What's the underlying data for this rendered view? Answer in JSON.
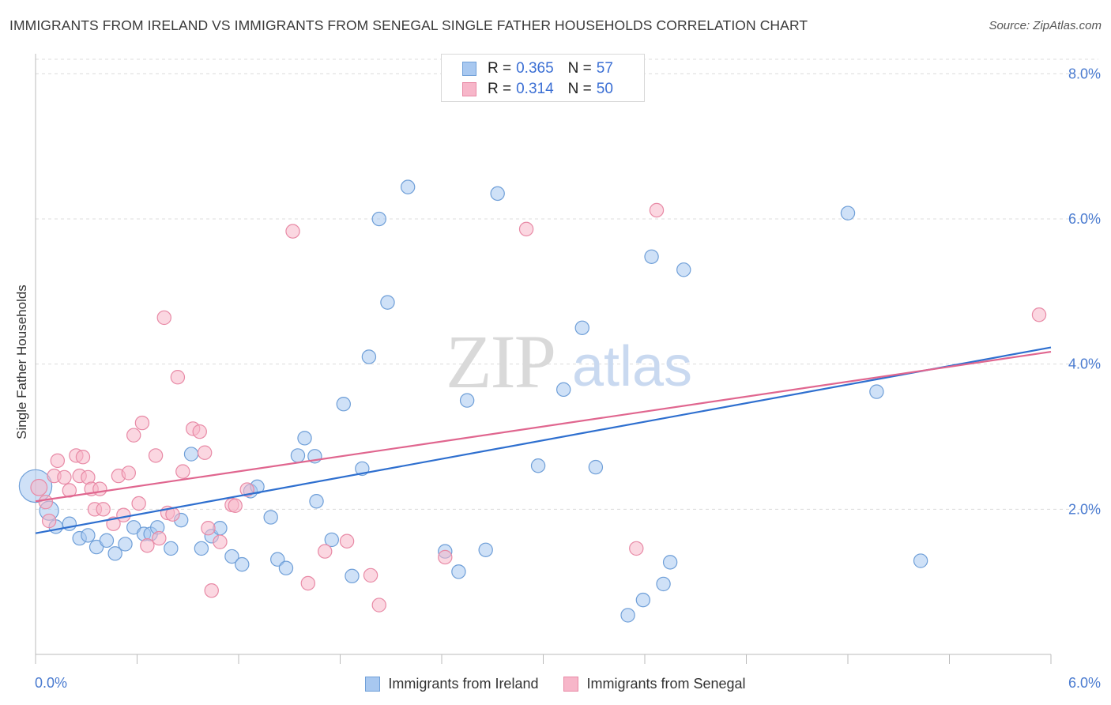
{
  "title": "IMMIGRANTS FROM IRELAND VS IMMIGRANTS FROM SENEGAL SINGLE FATHER HOUSEHOLDS CORRELATION CHART",
  "source": "Source: ZipAtlas.com",
  "watermark": {
    "zip": "ZIP",
    "atlas": "atlas"
  },
  "legend_top": [
    {
      "r_label": "R =",
      "r_value": "0.365",
      "n_label": "N =",
      "n_value": "57"
    },
    {
      "r_label": "R =",
      "r_value": "0.314",
      "n_label": "N =",
      "n_value": "50"
    }
  ],
  "legend_bottom": [
    {
      "label": "Immigrants from Ireland"
    },
    {
      "label": "Immigrants from Senegal"
    }
  ],
  "colors": {
    "ireland_fill": "#a8c8f0",
    "ireland_stroke": "#6f9fd8",
    "ireland_line": "#2e6fcf",
    "senegal_fill": "#f7b6c9",
    "senegal_stroke": "#e88aa6",
    "senegal_line": "#e0668f",
    "axis_text": "#4a7bd0",
    "grid": "#dcdcdc"
  },
  "chart_data": {
    "type": "scatter",
    "title": "IMMIGRANTS FROM IRELAND VS IMMIGRANTS FROM SENEGAL SINGLE FATHER HOUSEHOLDS CORRELATION CHART",
    "xlabel": "",
    "ylabel": "Single Father Households",
    "xlim": [
      0,
      6.3
    ],
    "ylim": [
      0,
      8.2
    ],
    "x_tick_labels": [
      "0.0%",
      "6.0%"
    ],
    "y_ticks": [
      2,
      4,
      6,
      8
    ],
    "y_tick_labels": [
      "2.0%",
      "4.0%",
      "6.0%",
      "8.0%"
    ],
    "grid": "horizontal dashed",
    "legend_position": "top-center",
    "series": [
      {
        "name": "Immigrants from Ireland",
        "r": 0.365,
        "n": 57,
        "trend": {
          "x": [
            0,
            6.0
          ],
          "y": [
            1.67,
            4.23
          ]
        },
        "points": [
          [
            0.0,
            2.32,
            24
          ],
          [
            0.08,
            1.98,
            14
          ],
          [
            0.12,
            1.76,
            10
          ],
          [
            0.2,
            1.8,
            10
          ],
          [
            0.26,
            1.6,
            10
          ],
          [
            0.31,
            1.64,
            10
          ],
          [
            0.36,
            1.48,
            10
          ],
          [
            0.42,
            1.57,
            10
          ],
          [
            0.47,
            1.39,
            10
          ],
          [
            0.53,
            1.52,
            10
          ],
          [
            0.58,
            1.75,
            10
          ],
          [
            0.64,
            1.66,
            10
          ],
          [
            0.68,
            1.66,
            10
          ],
          [
            0.72,
            1.75,
            10
          ],
          [
            0.8,
            1.46,
            10
          ],
          [
            0.86,
            1.85,
            10
          ],
          [
            0.92,
            2.76,
            10
          ],
          [
            0.98,
            1.46,
            10
          ],
          [
            1.04,
            1.63,
            10
          ],
          [
            1.09,
            1.74,
            10
          ],
          [
            1.16,
            1.35,
            10
          ],
          [
            1.22,
            1.24,
            10
          ],
          [
            1.27,
            2.25,
            10
          ],
          [
            1.31,
            2.31,
            10
          ],
          [
            1.39,
            1.89,
            10
          ],
          [
            1.43,
            1.31,
            10
          ],
          [
            1.48,
            1.19,
            10
          ],
          [
            1.55,
            2.74,
            10
          ],
          [
            1.59,
            2.98,
            10
          ],
          [
            1.65,
            2.73,
            10
          ],
          [
            1.66,
            2.11,
            10
          ],
          [
            1.75,
            1.58,
            10
          ],
          [
            1.82,
            3.45,
            10
          ],
          [
            1.87,
            1.08,
            10
          ],
          [
            1.93,
            2.56,
            10
          ],
          [
            1.97,
            4.1,
            10
          ],
          [
            2.03,
            6.0,
            10
          ],
          [
            2.08,
            4.85,
            10
          ],
          [
            2.2,
            6.44,
            10
          ],
          [
            2.42,
            1.42,
            10
          ],
          [
            2.5,
            1.14,
            10
          ],
          [
            2.55,
            3.5,
            10
          ],
          [
            2.66,
            1.44,
            10
          ],
          [
            2.73,
            6.35,
            10
          ],
          [
            2.97,
            2.6,
            10
          ],
          [
            3.12,
            3.65,
            10
          ],
          [
            3.23,
            4.5,
            10
          ],
          [
            3.31,
            2.58,
            10
          ],
          [
            3.5,
            0.54,
            10
          ],
          [
            3.59,
            0.75,
            10
          ],
          [
            3.64,
            5.48,
            10
          ],
          [
            3.71,
            0.97,
            10
          ],
          [
            3.75,
            1.27,
            10
          ],
          [
            3.83,
            5.3,
            10
          ],
          [
            4.8,
            6.08,
            10
          ],
          [
            4.97,
            3.62,
            10
          ],
          [
            5.23,
            1.29,
            10
          ]
        ]
      },
      {
        "name": "Immigrants from Senegal",
        "r": 0.314,
        "n": 50,
        "trend": {
          "x": [
            0,
            6.0
          ],
          "y": [
            2.11,
            4.17
          ]
        },
        "points": [
          [
            0.02,
            2.3,
            12
          ],
          [
            0.06,
            2.1,
            10
          ],
          [
            0.08,
            1.84,
            10
          ],
          [
            0.11,
            2.46,
            10
          ],
          [
            0.13,
            2.67,
            10
          ],
          [
            0.17,
            2.44,
            10
          ],
          [
            0.2,
            2.26,
            10
          ],
          [
            0.24,
            2.74,
            10
          ],
          [
            0.26,
            2.46,
            10
          ],
          [
            0.28,
            2.72,
            10
          ],
          [
            0.31,
            2.44,
            10
          ],
          [
            0.33,
            2.28,
            10
          ],
          [
            0.35,
            2.0,
            10
          ],
          [
            0.38,
            2.28,
            10
          ],
          [
            0.4,
            2.0,
            10
          ],
          [
            0.46,
            1.8,
            10
          ],
          [
            0.49,
            2.46,
            10
          ],
          [
            0.52,
            1.92,
            10
          ],
          [
            0.55,
            2.5,
            10
          ],
          [
            0.58,
            3.02,
            10
          ],
          [
            0.61,
            2.08,
            10
          ],
          [
            0.63,
            3.19,
            10
          ],
          [
            0.66,
            1.5,
            10
          ],
          [
            0.71,
            2.74,
            10
          ],
          [
            0.73,
            1.6,
            10
          ],
          [
            0.76,
            4.64,
            10
          ],
          [
            0.78,
            1.95,
            10
          ],
          [
            0.81,
            1.93,
            10
          ],
          [
            0.84,
            3.82,
            10
          ],
          [
            0.87,
            2.52,
            10
          ],
          [
            0.93,
            3.11,
            10
          ],
          [
            0.97,
            3.07,
            10
          ],
          [
            1.0,
            2.78,
            10
          ],
          [
            1.02,
            1.74,
            10
          ],
          [
            1.04,
            0.88,
            10
          ],
          [
            1.09,
            1.55,
            10
          ],
          [
            1.16,
            2.06,
            10
          ],
          [
            1.18,
            2.05,
            10
          ],
          [
            1.25,
            2.27,
            10
          ],
          [
            1.52,
            5.83,
            10
          ],
          [
            1.61,
            0.98,
            10
          ],
          [
            1.71,
            1.42,
            10
          ],
          [
            1.84,
            1.56,
            10
          ],
          [
            1.98,
            1.09,
            10
          ],
          [
            2.03,
            0.68,
            10
          ],
          [
            2.42,
            1.34,
            10
          ],
          [
            2.9,
            5.86,
            10
          ],
          [
            3.55,
            1.46,
            10
          ],
          [
            3.67,
            6.12,
            10
          ],
          [
            5.93,
            4.68,
            10
          ]
        ]
      }
    ]
  }
}
